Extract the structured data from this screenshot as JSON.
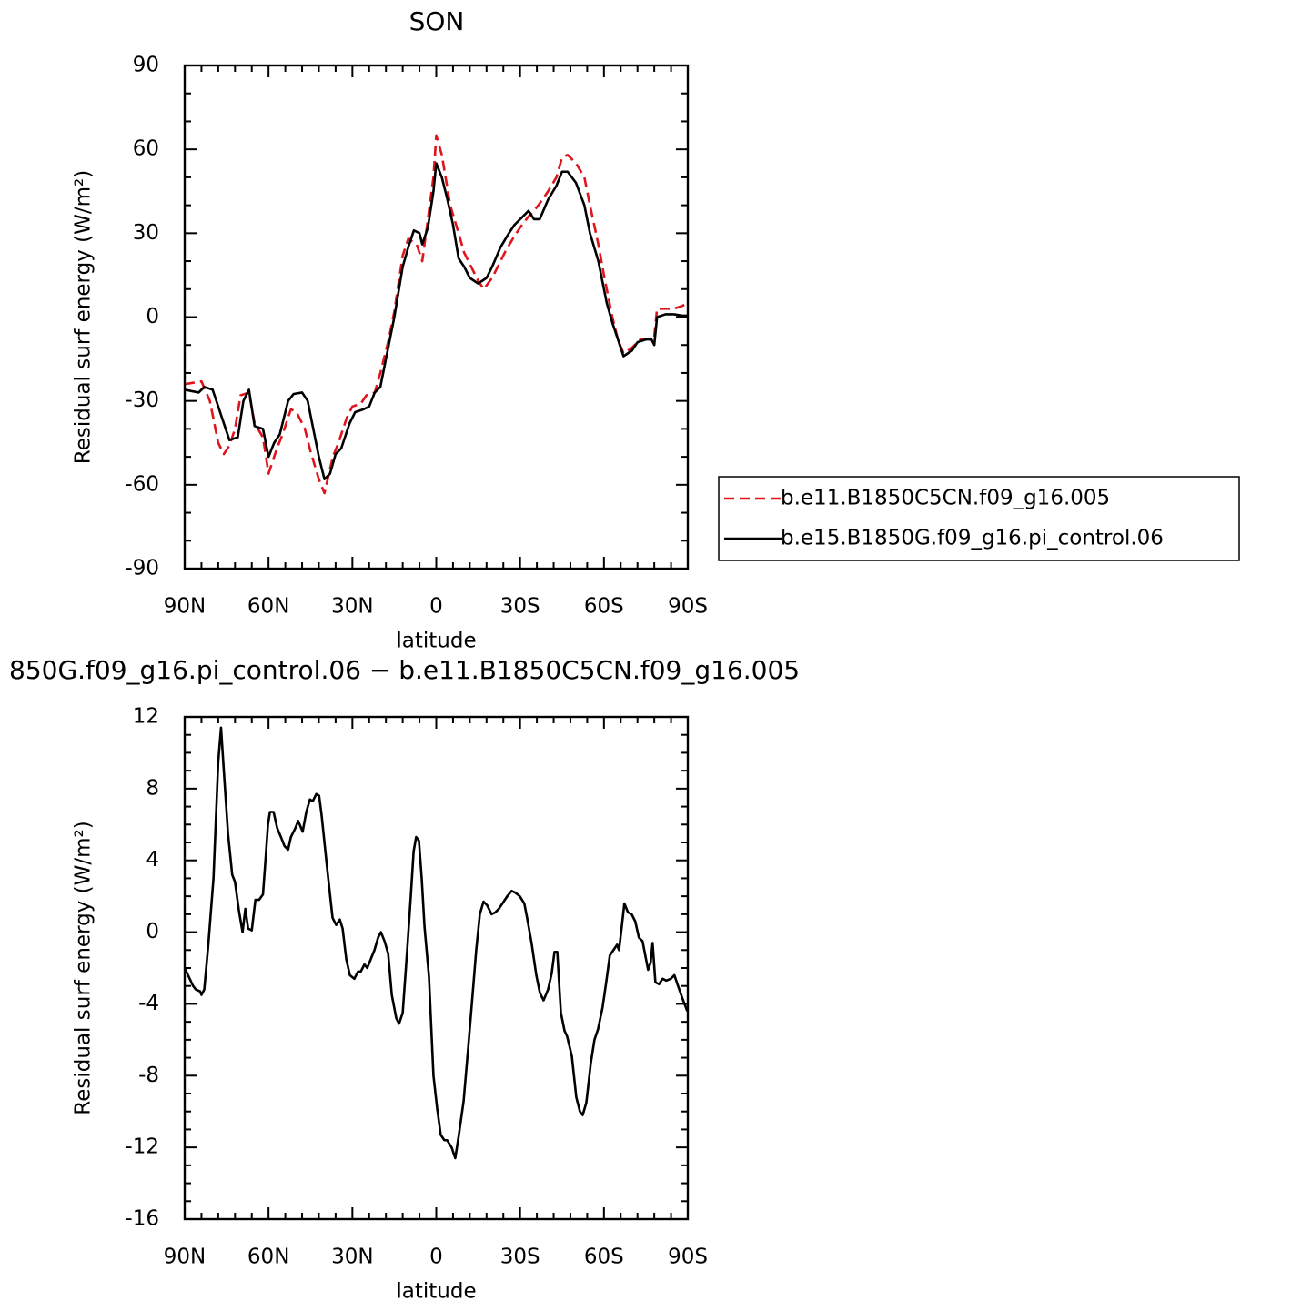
{
  "chart_data": [
    {
      "type": "line",
      "title": "SON",
      "xlabel": "latitude",
      "ylabel": "Residual surf energy (W/m²)",
      "xlim": [
        90,
        -90
      ],
      "xticks": [
        {
          "value": 90,
          "label": "90N"
        },
        {
          "value": 60,
          "label": "60N"
        },
        {
          "value": 30,
          "label": "30N"
        },
        0,
        {
          "value": -30,
          "label": "30S"
        },
        {
          "value": -60,
          "label": "60S"
        },
        {
          "value": -90,
          "label": "90S"
        }
      ],
      "xminorticks": [
        84,
        78,
        72,
        66,
        54,
        48,
        42,
        36,
        24,
        18,
        12,
        6,
        -6,
        -12,
        -18,
        -24,
        -36,
        -42,
        -48,
        -54,
        -66,
        -72,
        -78,
        -84
      ],
      "ylim": [
        -90,
        90
      ],
      "yticks": [
        -90,
        -60,
        -30,
        0,
        30,
        60,
        90
      ],
      "yminorticks": [
        80,
        70,
        50,
        40,
        20,
        10,
        -10,
        -20,
        -40,
        -50,
        -70,
        -80
      ],
      "legend": "outside-right",
      "series": [
        {
          "name": "b.e11.B1850C5CN.f09_g16.005",
          "color": "#e0141c",
          "line_style": "dashed",
          "x": [
            90,
            87,
            84,
            81,
            78,
            76,
            74,
            72,
            70,
            67,
            65,
            62,
            60,
            57,
            55,
            52,
            50,
            47,
            45,
            42,
            40,
            37,
            35,
            32,
            30,
            27,
            25,
            22,
            20,
            17,
            15,
            12,
            10,
            7,
            5,
            3,
            1,
            0,
            -2,
            -5,
            -8,
            -10,
            -13,
            -15,
            -17,
            -20,
            -23,
            -25,
            -28,
            -30,
            -33,
            -35,
            -38,
            -40,
            -43,
            -45,
            -47,
            -50,
            -53,
            -55,
            -58,
            -60,
            -63,
            -65,
            -67,
            -70,
            -73,
            -75,
            -78,
            -79,
            -82,
            -85,
            -88,
            -90
          ],
          "values": [
            -24,
            -23.5,
            -23,
            -30,
            -45,
            -49,
            -46,
            -40,
            -28,
            -27,
            -38,
            -43,
            -56,
            -47,
            -42,
            -33,
            -34,
            -40,
            -48,
            -58,
            -63,
            -50,
            -45,
            -36,
            -32,
            -31,
            -28,
            -27,
            -20,
            -8,
            2,
            22,
            28,
            26,
            20,
            35,
            50,
            65,
            58,
            40,
            30,
            23,
            17,
            13,
            10,
            14,
            20,
            24,
            29,
            32,
            36,
            38,
            42,
            45,
            50,
            57,
            58,
            55,
            50,
            40,
            26,
            15,
            0,
            -8,
            -13,
            -11,
            -8,
            -8,
            -7,
            3,
            3,
            3,
            4,
            5
          ]
        },
        {
          "name": "b.e15.B1850G.f09_g16.pi_control.06",
          "color": "#000000",
          "line_style": "solid",
          "x": [
            90,
            85,
            83,
            80,
            77,
            74,
            71,
            69,
            67,
            65,
            62,
            60,
            58,
            56,
            53,
            51,
            48,
            46,
            44,
            42,
            40,
            38,
            36,
            34,
            31,
            29,
            26,
            24,
            22,
            20,
            17,
            15,
            12,
            10,
            8,
            6,
            5,
            3,
            1,
            0,
            -2,
            -4,
            -6,
            -8,
            -10,
            -12,
            -15,
            -18,
            -20,
            -23,
            -26,
            -28,
            -31,
            -33,
            -35,
            -37,
            -40,
            -43,
            -45,
            -47,
            -50,
            -53,
            -55,
            -58,
            -61,
            -63,
            -65,
            -67,
            -70,
            -72,
            -75,
            -77,
            -78,
            -79,
            -82,
            -85,
            -88,
            -90
          ],
          "values": [
            -26,
            -27,
            -25,
            -26,
            -35,
            -44,
            -43,
            -30,
            -26,
            -39,
            -40,
            -50,
            -45,
            -42,
            -30,
            -27.5,
            -27,
            -30,
            -40,
            -50,
            -58,
            -56,
            -49,
            -47,
            -38,
            -34,
            -33,
            -32,
            -27,
            -25,
            -10,
            0,
            18,
            25,
            31,
            30,
            26,
            32,
            45,
            55,
            50,
            42,
            33,
            21,
            18,
            14,
            12,
            14,
            18,
            25,
            30,
            33,
            36,
            38,
            35,
            35,
            42,
            47,
            52,
            52,
            48,
            40,
            30,
            20,
            5,
            -2,
            -8,
            -14,
            -12,
            -9,
            -8,
            -8,
            -10,
            0,
            1,
            1,
            0.5,
            0.5
          ]
        }
      ]
    },
    {
      "type": "line",
      "title": "850G.f09_g16.pi_control.06 − b.e11.B1850C5CN.f09_g16.005",
      "xlabel": "latitude",
      "ylabel": "Residual surf energy (W/m²)",
      "xlim": [
        90,
        -90
      ],
      "xticks": [
        {
          "value": 90,
          "label": "90N"
        },
        {
          "value": 60,
          "label": "60N"
        },
        {
          "value": 30,
          "label": "30N"
        },
        0,
        {
          "value": -30,
          "label": "30S"
        },
        {
          "value": -60,
          "label": "60S"
        },
        {
          "value": -90,
          "label": "90S"
        }
      ],
      "xminorticks": [
        84,
        78,
        72,
        66,
        54,
        48,
        42,
        36,
        24,
        18,
        12,
        6,
        -6,
        -12,
        -18,
        -24,
        -36,
        -42,
        -48,
        -54,
        -66,
        -72,
        -78,
        -84
      ],
      "ylim": [
        -16,
        12
      ],
      "yticks": [
        -16,
        -12,
        -8,
        -4,
        0,
        4,
        8,
        12
      ],
      "yminorticks": [
        11,
        10,
        9,
        7,
        6,
        5,
        3,
        2,
        1,
        -1,
        -2,
        -3,
        -5,
        -6,
        -7,
        -9,
        -10,
        -11,
        -13,
        -14,
        -15
      ],
      "series": [
        {
          "color": "#000000",
          "line_style": "solid",
          "x": [
            90,
            87,
            86,
            84.5,
            84,
            83,
            81.6,
            79.7,
            78,
            77,
            76,
            74.5,
            73,
            72,
            70.6,
            69.3,
            68.3,
            67.3,
            66,
            64.7,
            63.4,
            62,
            61.1,
            60.2,
            59.5,
            58.2,
            56.9,
            55.3,
            54.3,
            53,
            52,
            50.4,
            49.4,
            47.8,
            46.5,
            45.2,
            44.2,
            42.9,
            41.9,
            41,
            39,
            37.1,
            35.8,
            34.5,
            33.5,
            32.2,
            30.9,
            29.3,
            28,
            27,
            25.7,
            24.7,
            23.4,
            22.1,
            20.8,
            19.8,
            18.5,
            17.2,
            15.9,
            14.3,
            13.3,
            12,
            10.4,
            9.1,
            8.1,
            7.2,
            6.2,
            5.2,
            4.2,
            2.6,
            1,
            -0.3,
            -1.6,
            -2.9,
            -3.9,
            -5.5,
            -6.8,
            -8.1,
            -9.8,
            -11.4,
            -13,
            -14.3,
            -15.6,
            -16.9,
            -18.2,
            -19.8,
            -21.1,
            -22.4,
            -23.7,
            -25.4,
            -27,
            -28.3,
            -29.9,
            -31.5,
            -32.5,
            -34.1,
            -35.8,
            -37.1,
            -38.4,
            -40,
            -41.3,
            -42.3,
            -43.3,
            -44.6,
            -45.9,
            -46.8,
            -48.5,
            -50.1,
            -51.4,
            -52.4,
            -53.7,
            -55.3,
            -56.6,
            -57.9,
            -59.5,
            -60.8,
            -62.1,
            -63.4,
            -64.7,
            -65.4,
            -66.3,
            -67.3,
            -68.6,
            -69.9,
            -71.2,
            -72.5,
            -73.8,
            -74.8,
            -75.8,
            -76.7,
            -77.4,
            -78.4,
            -79.7,
            -81,
            -82.3,
            -83.9,
            -85.2,
            -86.5,
            -88.1,
            -89.8
          ],
          "values": [
            -2,
            -3,
            -3.2,
            -3.3,
            -3.5,
            -3.2,
            -0.8,
            3,
            9.5,
            11.4,
            9,
            5.5,
            3.2,
            2.8,
            1.2,
            0,
            1.3,
            0.2,
            0.1,
            1.8,
            1.8,
            2.1,
            4,
            6,
            6.7,
            6.7,
            5.8,
            5.2,
            4.8,
            4.6,
            5.3,
            5.8,
            6.2,
            5.6,
            6.7,
            7.4,
            7.3,
            7.7,
            7.6,
            6.5,
            3.5,
            0.8,
            0.4,
            0.7,
            0.2,
            -1.5,
            -2.4,
            -2.6,
            -2.2,
            -2.2,
            -1.8,
            -2,
            -1.5,
            -1,
            -0.3,
            0,
            -0.5,
            -1.2,
            -3.5,
            -4.8,
            -5.1,
            -4.5,
            -1,
            2,
            4.5,
            5.3,
            5.1,
            3,
            0.3,
            -2.5,
            -8,
            -9.8,
            -11.3,
            -11.6,
            -11.6,
            -12,
            -12.6,
            -11.3,
            -9.4,
            -6.5,
            -3.5,
            -1,
            1,
            1.7,
            1.5,
            1,
            1.1,
            1.3,
            1.6,
            2,
            2.3,
            2.2,
            2,
            1.6,
            0.8,
            -0.6,
            -2.4,
            -3.4,
            -3.8,
            -3.2,
            -2.3,
            -1.1,
            -1.1,
            -4.5,
            -5.5,
            -5.8,
            -6.9,
            -9.2,
            -10,
            -10.2,
            -9.5,
            -7.3,
            -6,
            -5.4,
            -4.2,
            -2.8,
            -1.3,
            -1,
            -0.7,
            -1,
            0.2,
            1.6,
            1.1,
            1,
            0.6,
            -0.3,
            -0.5,
            -1.3,
            -2.1,
            -1.7,
            -0.6,
            -2.8,
            -2.9,
            -2.6,
            -2.7,
            -2.6,
            -2.4,
            -3,
            -3.7,
            -4.4
          ]
        }
      ]
    }
  ]
}
